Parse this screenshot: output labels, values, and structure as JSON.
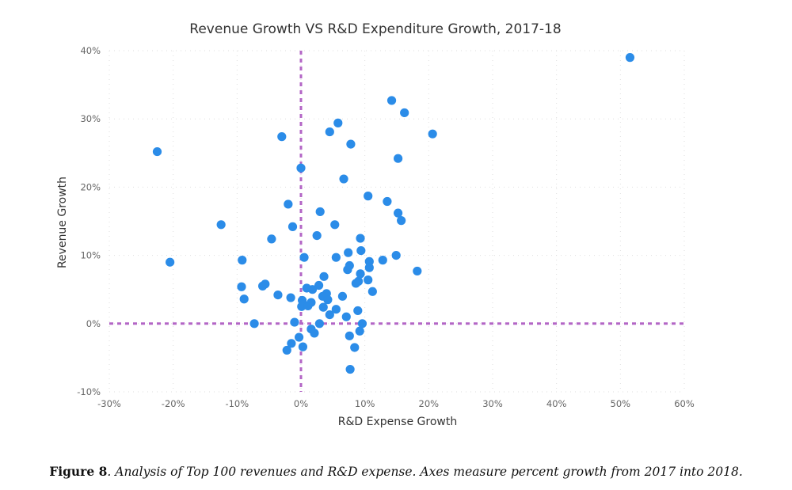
{
  "chart_data": {
    "type": "scatter",
    "title": "Revenue Growth VS R&D Expenditure Growth, 2017-18",
    "xlabel": "R&D Expense Growth",
    "ylabel": "Revenue Growth",
    "xlim": [
      -30,
      60
    ],
    "ylim": [
      -10,
      40
    ],
    "x_ticks": [
      -30,
      -20,
      -10,
      0,
      10,
      20,
      30,
      40,
      50,
      60
    ],
    "y_ticks": [
      -10,
      0,
      10,
      20,
      30,
      40
    ],
    "tick_format": "percent",
    "grid": true,
    "reference_lines": {
      "x": 0,
      "y": 0,
      "style": "dashed",
      "color": "#b366c6"
    },
    "point_color": "#2b8ce8",
    "points": [
      [
        51.5,
        39.0
      ],
      [
        -22.5,
        25.2
      ],
      [
        -20.5,
        9.0
      ],
      [
        -12.5,
        14.5
      ],
      [
        -9.2,
        9.3
      ],
      [
        -9.3,
        5.4
      ],
      [
        -8.9,
        3.6
      ],
      [
        -7.3,
        0.0
      ],
      [
        -6.0,
        5.5
      ],
      [
        -5.6,
        5.8
      ],
      [
        -4.6,
        12.4
      ],
      [
        -3.6,
        4.2
      ],
      [
        -3.0,
        27.4
      ],
      [
        -2.0,
        17.5
      ],
      [
        -1.6,
        3.8
      ],
      [
        -1.3,
        14.2
      ],
      [
        -1.0,
        0.2
      ],
      [
        -2.2,
        -3.9
      ],
      [
        -1.5,
        -2.9
      ],
      [
        -0.3,
        -2.0
      ],
      [
        0.0,
        22.8
      ],
      [
        0.5,
        9.7
      ],
      [
        0.2,
        3.4
      ],
      [
        0.4,
        2.8
      ],
      [
        0.1,
        2.5
      ],
      [
        0.3,
        -3.4
      ],
      [
        0.9,
        5.2
      ],
      [
        1.1,
        2.6
      ],
      [
        1.6,
        3.1
      ],
      [
        1.8,
        5.0
      ],
      [
        1.6,
        -0.8
      ],
      [
        2.1,
        -1.4
      ],
      [
        2.5,
        12.9
      ],
      [
        2.8,
        5.6
      ],
      [
        2.9,
        0.0
      ],
      [
        3.0,
        16.4
      ],
      [
        3.4,
        4.0
      ],
      [
        3.5,
        2.4
      ],
      [
        3.6,
        6.9
      ],
      [
        4.0,
        4.4
      ],
      [
        4.2,
        3.5
      ],
      [
        4.5,
        1.3
      ],
      [
        4.5,
        28.1
      ],
      [
        5.3,
        14.5
      ],
      [
        5.5,
        9.7
      ],
      [
        5.5,
        2.1
      ],
      [
        5.8,
        29.4
      ],
      [
        6.5,
        4.0
      ],
      [
        6.7,
        21.2
      ],
      [
        7.1,
        1.0
      ],
      [
        7.3,
        7.9
      ],
      [
        7.4,
        10.4
      ],
      [
        7.6,
        8.5
      ],
      [
        7.6,
        -1.8
      ],
      [
        7.8,
        26.3
      ],
      [
        7.7,
        -6.7
      ],
      [
        8.4,
        -3.5
      ],
      [
        8.6,
        5.9
      ],
      [
        8.9,
        1.9
      ],
      [
        9.0,
        6.2
      ],
      [
        9.2,
        -1.1
      ],
      [
        9.3,
        7.3
      ],
      [
        9.3,
        12.5
      ],
      [
        9.4,
        10.7
      ],
      [
        9.6,
        0.0
      ],
      [
        10.5,
        6.4
      ],
      [
        10.5,
        18.7
      ],
      [
        10.7,
        9.1
      ],
      [
        10.7,
        8.2
      ],
      [
        11.2,
        4.7
      ],
      [
        12.8,
        9.3
      ],
      [
        13.5,
        17.9
      ],
      [
        14.2,
        32.7
      ],
      [
        14.9,
        10.0
      ],
      [
        15.2,
        16.2
      ],
      [
        15.2,
        24.2
      ],
      [
        15.7,
        15.1
      ],
      [
        16.2,
        30.9
      ],
      [
        18.2,
        7.7
      ],
      [
        20.6,
        27.8
      ]
    ]
  },
  "caption": {
    "label": "Figure 8",
    "text": ". Analysis of Top 100 revenues and R&D expense. Axes measure percent growth from 2017 into 2018."
  }
}
